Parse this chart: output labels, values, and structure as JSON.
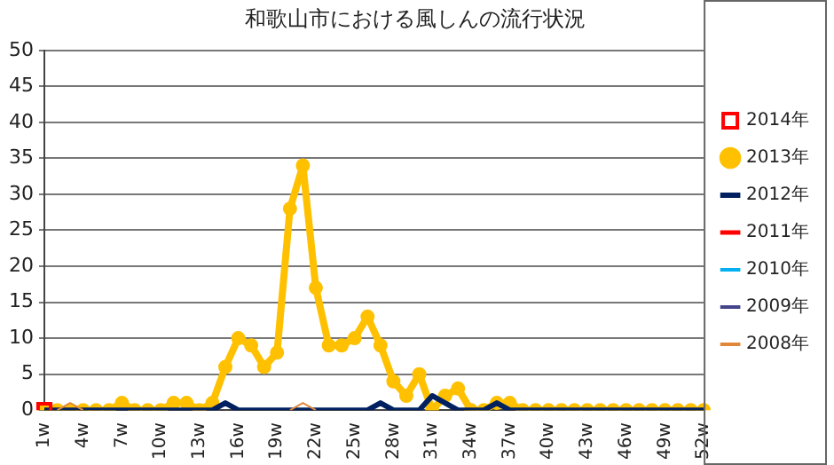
{
  "chart_data": {
    "type": "line",
    "title": "和歌山市における風しんの流行状況",
    "categories": [
      "1w",
      null,
      null,
      "4w",
      null,
      null,
      "7w",
      null,
      null,
      "10w",
      null,
      null,
      "13w",
      null,
      null,
      "16w",
      null,
      null,
      "19w",
      null,
      null,
      "22w",
      null,
      null,
      "25w",
      null,
      null,
      "28w",
      null,
      null,
      "31w",
      null,
      null,
      "34w",
      null,
      null,
      "37w",
      null,
      null,
      "40w",
      null,
      null,
      "43w",
      null,
      null,
      "46w",
      null,
      null,
      "49w",
      null,
      null,
      "52w"
    ],
    "ylim": [
      0,
      50
    ],
    "yticks": [
      0,
      5,
      10,
      15,
      20,
      25,
      30,
      35,
      40,
      45,
      50
    ],
    "grid": "y",
    "legend": "right",
    "series": [
      {
        "name": "2014年",
        "color": "#ff0000",
        "marker": "square",
        "values": [
          0,
          null,
          null,
          null,
          null,
          null,
          null,
          null,
          null,
          null,
          null,
          null,
          null,
          null,
          null,
          null,
          null,
          null,
          null,
          null,
          null,
          null,
          null,
          null,
          null,
          null,
          null,
          null,
          null,
          null,
          null,
          null,
          null,
          null,
          null,
          null,
          null,
          null,
          null,
          null,
          null,
          null,
          null,
          null,
          null,
          null,
          null,
          null,
          null,
          null,
          null,
          null
        ]
      },
      {
        "name": "2013年",
        "color": "#ffc000",
        "marker": "circle",
        "values": [
          0,
          0,
          0,
          0,
          0,
          0,
          1,
          0,
          0,
          0,
          1,
          1,
          0,
          1,
          6,
          10,
          9,
          6,
          8,
          28,
          34,
          17,
          9,
          9,
          10,
          13,
          9,
          4,
          2,
          5,
          0,
          2,
          3,
          0,
          0,
          1,
          1,
          0,
          0,
          0,
          0,
          0,
          0,
          0,
          0,
          0,
          0,
          0,
          0,
          0,
          0,
          0
        ]
      },
      {
        "name": "2012年",
        "color": "#002060",
        "marker": "none",
        "values": [
          0,
          0,
          0,
          0,
          0,
          0,
          0,
          0,
          0,
          0,
          0,
          0,
          0,
          0,
          1,
          0,
          0,
          0,
          0,
          0,
          0,
          0,
          0,
          0,
          0,
          0,
          1,
          0,
          0,
          0,
          2,
          1,
          0,
          0,
          0,
          1,
          0,
          0,
          0,
          0,
          0,
          0,
          0,
          0,
          0,
          0,
          0,
          0,
          0,
          0,
          0,
          0
        ]
      },
      {
        "name": "2011年",
        "color": "#ff0000",
        "marker": "none",
        "values": [
          null,
          null,
          null,
          null,
          null,
          null,
          null,
          null,
          null,
          null,
          null,
          null,
          null,
          null,
          null,
          null,
          null,
          null,
          null,
          null,
          null,
          null,
          null,
          null,
          null,
          null,
          null,
          null,
          null,
          null,
          null,
          null,
          null,
          null,
          null,
          null,
          null,
          null,
          null,
          null,
          null,
          null,
          null,
          null,
          null,
          null,
          null,
          null,
          null,
          null,
          null,
          null
        ]
      },
      {
        "name": "2010年",
        "color": "#00b0f0",
        "marker": "none",
        "values": [
          null,
          null,
          null,
          null,
          null,
          null,
          null,
          null,
          null,
          null,
          null,
          null,
          null,
          null,
          null,
          null,
          null,
          null,
          null,
          null,
          null,
          null,
          null,
          null,
          null,
          null,
          null,
          null,
          null,
          null,
          null,
          null,
          null,
          null,
          null,
          null,
          null,
          null,
          null,
          null,
          null,
          null,
          null,
          null,
          null,
          null,
          null,
          null,
          null,
          null,
          null,
          null
        ]
      },
      {
        "name": "2009年",
        "color": "#44448a",
        "marker": "none",
        "values": [
          null,
          null,
          null,
          null,
          null,
          null,
          null,
          null,
          null,
          null,
          null,
          null,
          null,
          null,
          null,
          null,
          null,
          null,
          null,
          null,
          null,
          null,
          null,
          null,
          null,
          null,
          null,
          null,
          null,
          null,
          null,
          null,
          null,
          null,
          null,
          null,
          null,
          null,
          null,
          null,
          null,
          null,
          null,
          null,
          null,
          null,
          null,
          null,
          null,
          null,
          null,
          null
        ]
      },
      {
        "name": "2008年",
        "color": "#e0883a",
        "marker": "none",
        "values": [
          null,
          0,
          1,
          0,
          null,
          null,
          null,
          null,
          null,
          null,
          null,
          null,
          null,
          null,
          null,
          null,
          null,
          null,
          null,
          0,
          1,
          0,
          null,
          null,
          null,
          null,
          null,
          null,
          null,
          null,
          null,
          null,
          null,
          null,
          null,
          null,
          null,
          null,
          null,
          null,
          null,
          null,
          null,
          null,
          null,
          null,
          null,
          null,
          null,
          null,
          null,
          null
        ]
      }
    ]
  }
}
